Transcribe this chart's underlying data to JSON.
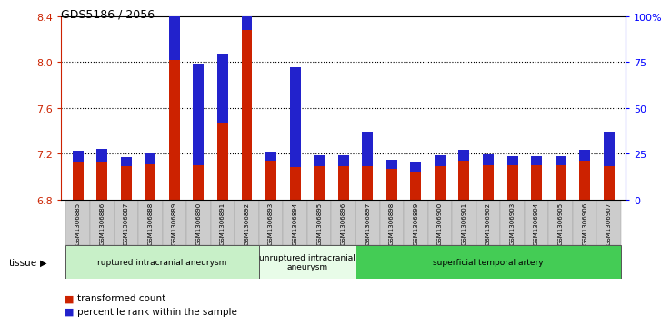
{
  "title": "GDS5186 / 2056",
  "samples": [
    "GSM1306885",
    "GSM1306886",
    "GSM1306887",
    "GSM1306888",
    "GSM1306889",
    "GSM1306890",
    "GSM1306891",
    "GSM1306892",
    "GSM1306893",
    "GSM1306894",
    "GSM1306895",
    "GSM1306896",
    "GSM1306897",
    "GSM1306898",
    "GSM1306899",
    "GSM1306900",
    "GSM1306901",
    "GSM1306902",
    "GSM1306903",
    "GSM1306904",
    "GSM1306905",
    "GSM1306906",
    "GSM1306907"
  ],
  "red_values": [
    7.13,
    7.13,
    7.09,
    7.11,
    8.02,
    7.1,
    7.47,
    8.28,
    7.14,
    7.08,
    7.09,
    7.09,
    7.09,
    7.07,
    7.04,
    7.09,
    7.14,
    7.1,
    7.1,
    7.1,
    7.1,
    7.14,
    7.09
  ],
  "blue_percentile": [
    6,
    7,
    5,
    6,
    52,
    55,
    38,
    52,
    5,
    55,
    6,
    6,
    19,
    5,
    5,
    6,
    6,
    6,
    5,
    5,
    5,
    6,
    19
  ],
  "ymin": 6.8,
  "ymax": 8.4,
  "yticks": [
    6.8,
    7.2,
    7.6,
    8.0,
    8.4
  ],
  "grid_lines": [
    7.2,
    7.6,
    8.0
  ],
  "right_ytick_vals": [
    0,
    25,
    50,
    75,
    100
  ],
  "right_ytick_labels": [
    "0",
    "25",
    "50",
    "75",
    "100%"
  ],
  "groups": [
    {
      "label": "ruptured intracranial aneurysm",
      "start": 0,
      "end": 7,
      "color": "#c8f0c8"
    },
    {
      "label": "unruptured intracranial\naneurysm",
      "start": 8,
      "end": 11,
      "color": "#e8fce8"
    },
    {
      "label": "superficial temporal artery",
      "start": 12,
      "end": 22,
      "color": "#44cc55"
    }
  ],
  "legend_red": "transformed count",
  "legend_blue": "percentile rank within the sample",
  "tissue_label": "tissue",
  "red_color": "#cc2200",
  "blue_color": "#2222cc",
  "tick_bg_color": "#cccccc"
}
